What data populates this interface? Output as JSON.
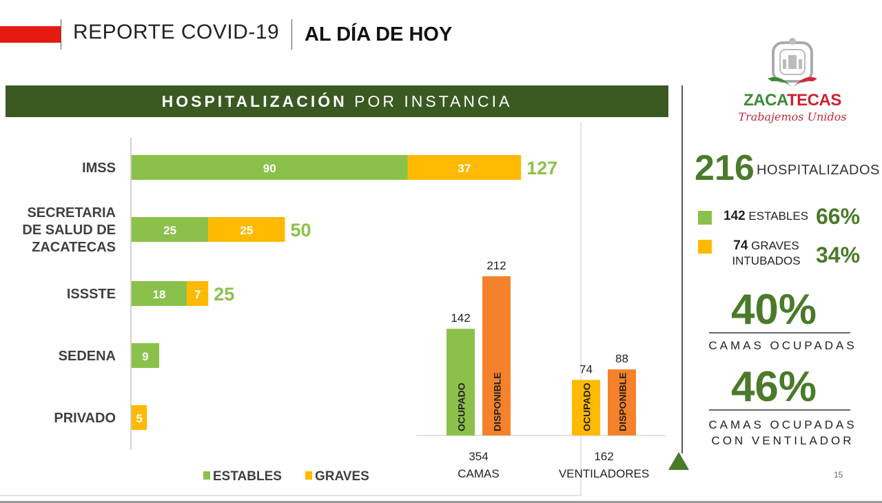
{
  "header": {
    "title": "REPORTE COVID-19",
    "subtitle": "AL DÍA DE HOY"
  },
  "section": {
    "title_bold": "HOSPITALIZACIÓN",
    "title_rest": " POR INSTANCIA"
  },
  "logo": {
    "name_part1": "ZACA",
    "name_part2": "TECAS",
    "tagline": "Trabajemos Unidos"
  },
  "summary": {
    "total": "216",
    "total_label": "HOSPITALIZADOS",
    "estables_count": "142",
    "estables_label": " ESTABLES",
    "estables_pct": "66%",
    "graves_count": "74",
    "graves_label": " GRAVES",
    "graves_label2": "INTUBADOS",
    "graves_pct": "34%",
    "camas_ocupadas_pct": "40%",
    "camas_ocupadas_label": "CAMAS OCUPADAS",
    "ventilador_pct": "46%",
    "ventilador_label1": "CAMAS OCUPADAS",
    "ventilador_label2": "CON VENTILADOR"
  },
  "page_number": "15",
  "colors": {
    "estables": "#8bc14a",
    "graves": "#ffb900",
    "disponible": "#f5822a",
    "header_green": "#3a5a22",
    "accent_green": "#4a7a2a",
    "red": "#e51b12"
  },
  "chart_data": [
    {
      "type": "bar",
      "orientation": "horizontal",
      "stacked": true,
      "title": "HOSPITALIZACIÓN POR INSTANCIA",
      "categories": [
        [
          "IMSS"
        ],
        [
          "SECRETARIA",
          "DE SALUD DE",
          "ZACATECAS"
        ],
        [
          "ISSSTE"
        ],
        [
          "SEDENA"
        ],
        [
          "PRIVADO"
        ]
      ],
      "series": [
        {
          "name": "ESTABLES",
          "color": "#8bc14a",
          "values": [
            90,
            25,
            18,
            9,
            0
          ]
        },
        {
          "name": "GRAVES",
          "color": "#ffb900",
          "values": [
            37,
            25,
            7,
            0,
            5
          ]
        }
      ],
      "totals": [
        127,
        50,
        25,
        null,
        null
      ],
      "xlim": [
        0,
        135
      ],
      "legend": "bottom",
      "grid": false
    },
    {
      "type": "bar",
      "orientation": "vertical",
      "groups": [
        {
          "total": "354",
          "label": "CAMAS",
          "bars": [
            {
              "label": "OCUPADO",
              "value": 142,
              "color": "#8bc14a"
            },
            {
              "label": "DISPONIBLE",
              "value": 212,
              "color": "#f5822a"
            }
          ]
        },
        {
          "total": "162",
          "label": "VENTILADORES",
          "bars": [
            {
              "label": "OCUPADO",
              "value": 74,
              "color": "#ffb900"
            },
            {
              "label": "DISPONIBLE",
              "value": 88,
              "color": "#f5822a"
            }
          ]
        }
      ],
      "ylim": [
        0,
        230
      ],
      "grid": false
    }
  ]
}
